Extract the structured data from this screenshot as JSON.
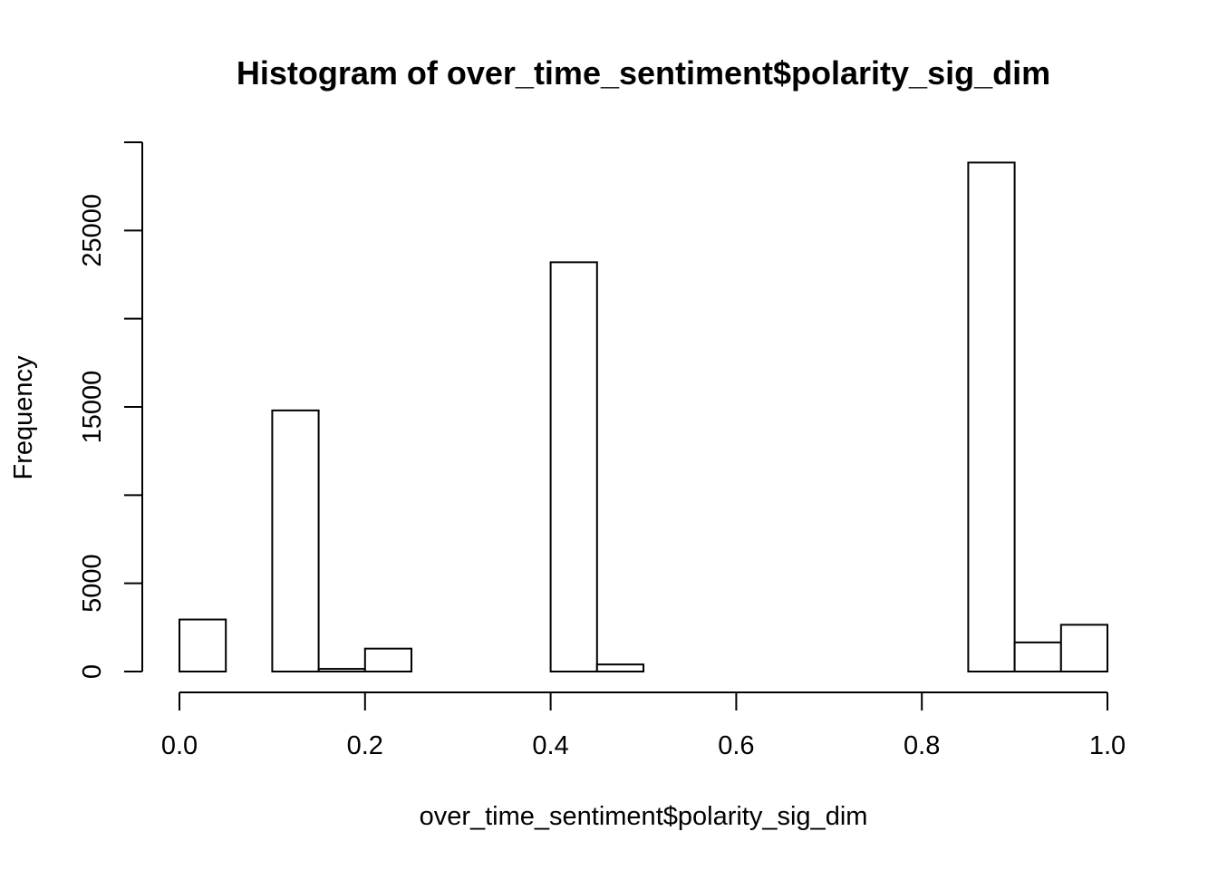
{
  "chart_data": {
    "type": "bar",
    "title": "Histogram of over_time_sentiment$polarity_sig_dim",
    "xlabel": "over_time_sentiment$polarity_sig_dim",
    "ylabel": "Frequency",
    "xlim": [
      0,
      1
    ],
    "ylim": [
      0,
      30000
    ],
    "grid": false,
    "x_ticks": [
      "0.0",
      "0.2",
      "0.4",
      "0.6",
      "0.8",
      "1.0"
    ],
    "x_tick_values": [
      0,
      0.2,
      0.4,
      0.6,
      0.8,
      1.0
    ],
    "y_ticks": [
      "0",
      "5000",
      "15000",
      "25000"
    ],
    "y_tick_values": [
      0,
      5000,
      15000,
      25000
    ],
    "y_minor_tick_values": [
      10000,
      20000,
      30000
    ],
    "bins": [
      {
        "x0": 0.0,
        "x1": 0.05,
        "count": 2950
      },
      {
        "x0": 0.05,
        "x1": 0.1,
        "count": 0
      },
      {
        "x0": 0.1,
        "x1": 0.15,
        "count": 14800
      },
      {
        "x0": 0.15,
        "x1": 0.2,
        "count": 150
      },
      {
        "x0": 0.2,
        "x1": 0.25,
        "count": 1300
      },
      {
        "x0": 0.25,
        "x1": 0.3,
        "count": 0
      },
      {
        "x0": 0.3,
        "x1": 0.35,
        "count": 0
      },
      {
        "x0": 0.35,
        "x1": 0.4,
        "count": 0
      },
      {
        "x0": 0.4,
        "x1": 0.45,
        "count": 23200
      },
      {
        "x0": 0.45,
        "x1": 0.5,
        "count": 400
      },
      {
        "x0": 0.5,
        "x1": 0.55,
        "count": 0
      },
      {
        "x0": 0.55,
        "x1": 0.6,
        "count": 0
      },
      {
        "x0": 0.6,
        "x1": 0.65,
        "count": 0
      },
      {
        "x0": 0.65,
        "x1": 0.7,
        "count": 0
      },
      {
        "x0": 0.7,
        "x1": 0.75,
        "count": 0
      },
      {
        "x0": 0.75,
        "x1": 0.8,
        "count": 0
      },
      {
        "x0": 0.8,
        "x1": 0.85,
        "count": 0
      },
      {
        "x0": 0.85,
        "x1": 0.9,
        "count": 28850
      },
      {
        "x0": 0.9,
        "x1": 0.95,
        "count": 1650
      },
      {
        "x0": 0.95,
        "x1": 1.0,
        "count": 2650
      }
    ]
  }
}
